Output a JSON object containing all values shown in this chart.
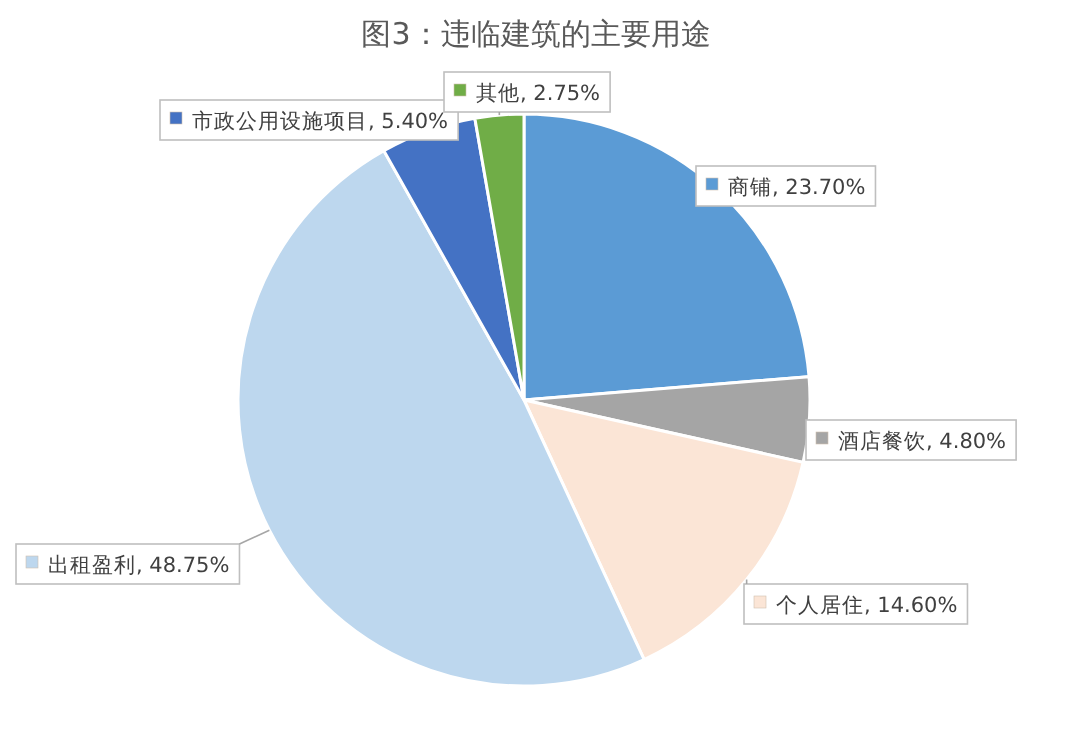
{
  "chart_data": {
    "type": "pie",
    "title": "图3：违临建筑的主要用途",
    "categories": [
      "商铺",
      "酒店餐饮",
      "个人居住",
      "出租盈利",
      "市政公用设施项目",
      "其他"
    ],
    "values": [
      23.7,
      4.8,
      14.6,
      48.75,
      5.4,
      2.75
    ],
    "value_labels": [
      "23.70%",
      "4.80%",
      "14.60%",
      "48.75%",
      "5.40%",
      "2.75%"
    ],
    "colors": [
      "#5b9bd5",
      "#a5a5a5",
      "#fbe5d6",
      "#bdd7ee",
      "#4472c4",
      "#70ad47"
    ],
    "legend": "right"
  }
}
